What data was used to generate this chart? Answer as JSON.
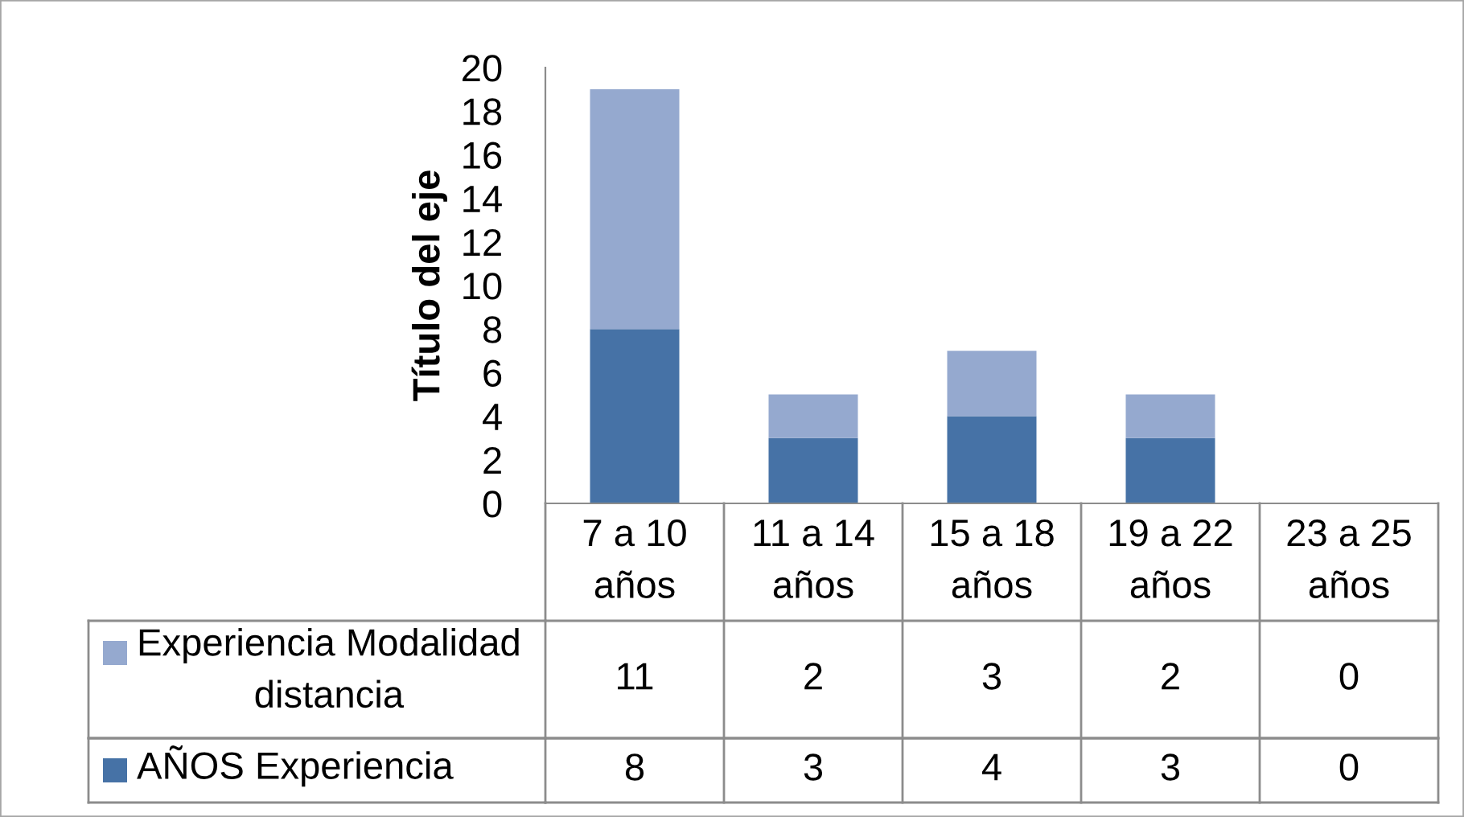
{
  "chart_data": {
    "type": "bar",
    "stacked": true,
    "categories": [
      "7 a 10 años",
      "11 a 14 años",
      "15 a 18 años",
      "19 a 22 años",
      "23 a 25 años"
    ],
    "series": [
      {
        "name": "AÑOS Experiencia",
        "color": "#4672a6",
        "values": [
          8,
          3,
          4,
          3,
          0
        ]
      },
      {
        "name": "Experiencia Modalidad distancia",
        "color": "#95a9cf",
        "values": [
          11,
          2,
          3,
          2,
          0
        ]
      }
    ],
    "ylabel": "Título del eje",
    "ylim": [
      0,
      20
    ],
    "yticks": [
      0,
      2,
      4,
      6,
      8,
      10,
      12,
      14,
      16,
      18,
      20
    ],
    "data_labels": true,
    "legend": "bottom"
  }
}
